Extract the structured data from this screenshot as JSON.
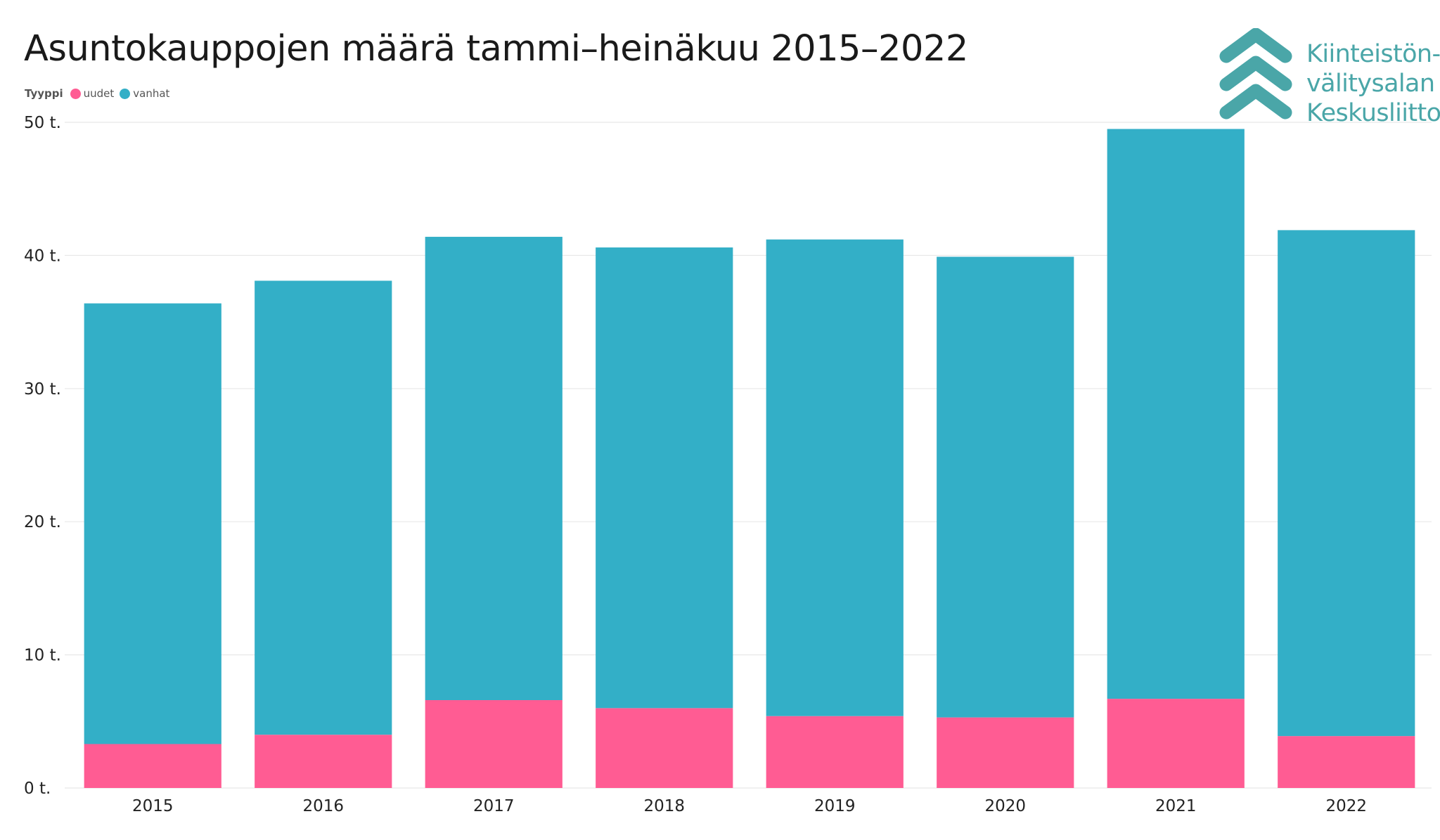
{
  "colors": {
    "uudet": "#ff5c93",
    "vanhat": "#33afc7",
    "grid": "#e8e8e8",
    "axis_text": "#222222",
    "logo": "#4aa6a8"
  },
  "logo": {
    "icon": "chevron-stack-icon",
    "lines": [
      "Kiinteistön-",
      "välitysalan",
      "Keskusliitto"
    ]
  },
  "chart_data": {
    "type": "bar",
    "stacked": true,
    "title": "Asuntokauppojen määrä tammi–heinäkuu 2015–2022",
    "legend_title": "Tyyppi",
    "legend_position": "top-left",
    "categories": [
      "2015",
      "2016",
      "2017",
      "2018",
      "2019",
      "2020",
      "2021",
      "2022"
    ],
    "series": [
      {
        "name": "uudet",
        "values": [
          3.3,
          4.0,
          6.6,
          6.0,
          5.4,
          5.3,
          6.7,
          3.9
        ]
      },
      {
        "name": "vanhat",
        "values": [
          33.1,
          34.1,
          34.8,
          34.6,
          35.8,
          34.6,
          42.8,
          38.0
        ]
      }
    ],
    "ylim": [
      0,
      50
    ],
    "yticks": [
      0,
      10,
      20,
      30,
      40,
      50
    ],
    "ytick_labels": [
      "0 t.",
      "10 t.",
      "20 t.",
      "30 t.",
      "40 t.",
      "50 t."
    ],
    "grid": true,
    "xlabel": "",
    "ylabel": ""
  }
}
